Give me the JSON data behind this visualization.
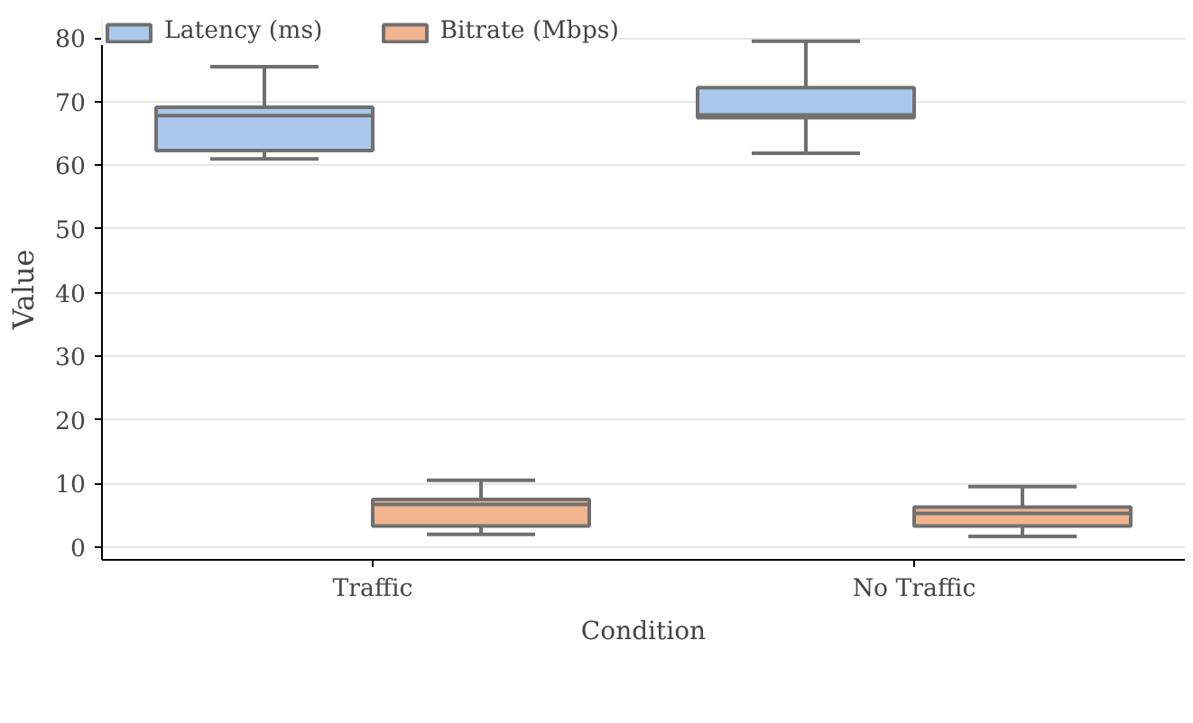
{
  "chart_data": {
    "type": "box",
    "xlabel": "Condition",
    "ylabel": "Value",
    "categories": [
      "Traffic",
      "No Traffic"
    ],
    "ylim": [
      -2,
      83
    ],
    "yticks": [
      0,
      10,
      20,
      30,
      40,
      50,
      60,
      70,
      80
    ],
    "grid": "y",
    "legend": "top",
    "series": [
      {
        "name": "Latency (ms)",
        "color": "#a9c8ec",
        "boxes": [
          {
            "low": 61.0,
            "q1": 62.3,
            "median": 67.8,
            "q3": 69.1,
            "high": 75.5
          },
          {
            "low": 61.9,
            "q1": 67.5,
            "median": 67.9,
            "q3": 72.2,
            "high": 79.5
          }
        ]
      },
      {
        "name": "Bitrate (Mbps)",
        "color": "#f0b48e",
        "boxes": [
          {
            "low": 2.0,
            "q1": 3.3,
            "median": 6.7,
            "q3": 7.5,
            "high": 10.5
          },
          {
            "low": 1.7,
            "q1": 3.3,
            "median": 5.3,
            "q3": 6.3,
            "high": 9.5
          }
        ]
      }
    ]
  }
}
